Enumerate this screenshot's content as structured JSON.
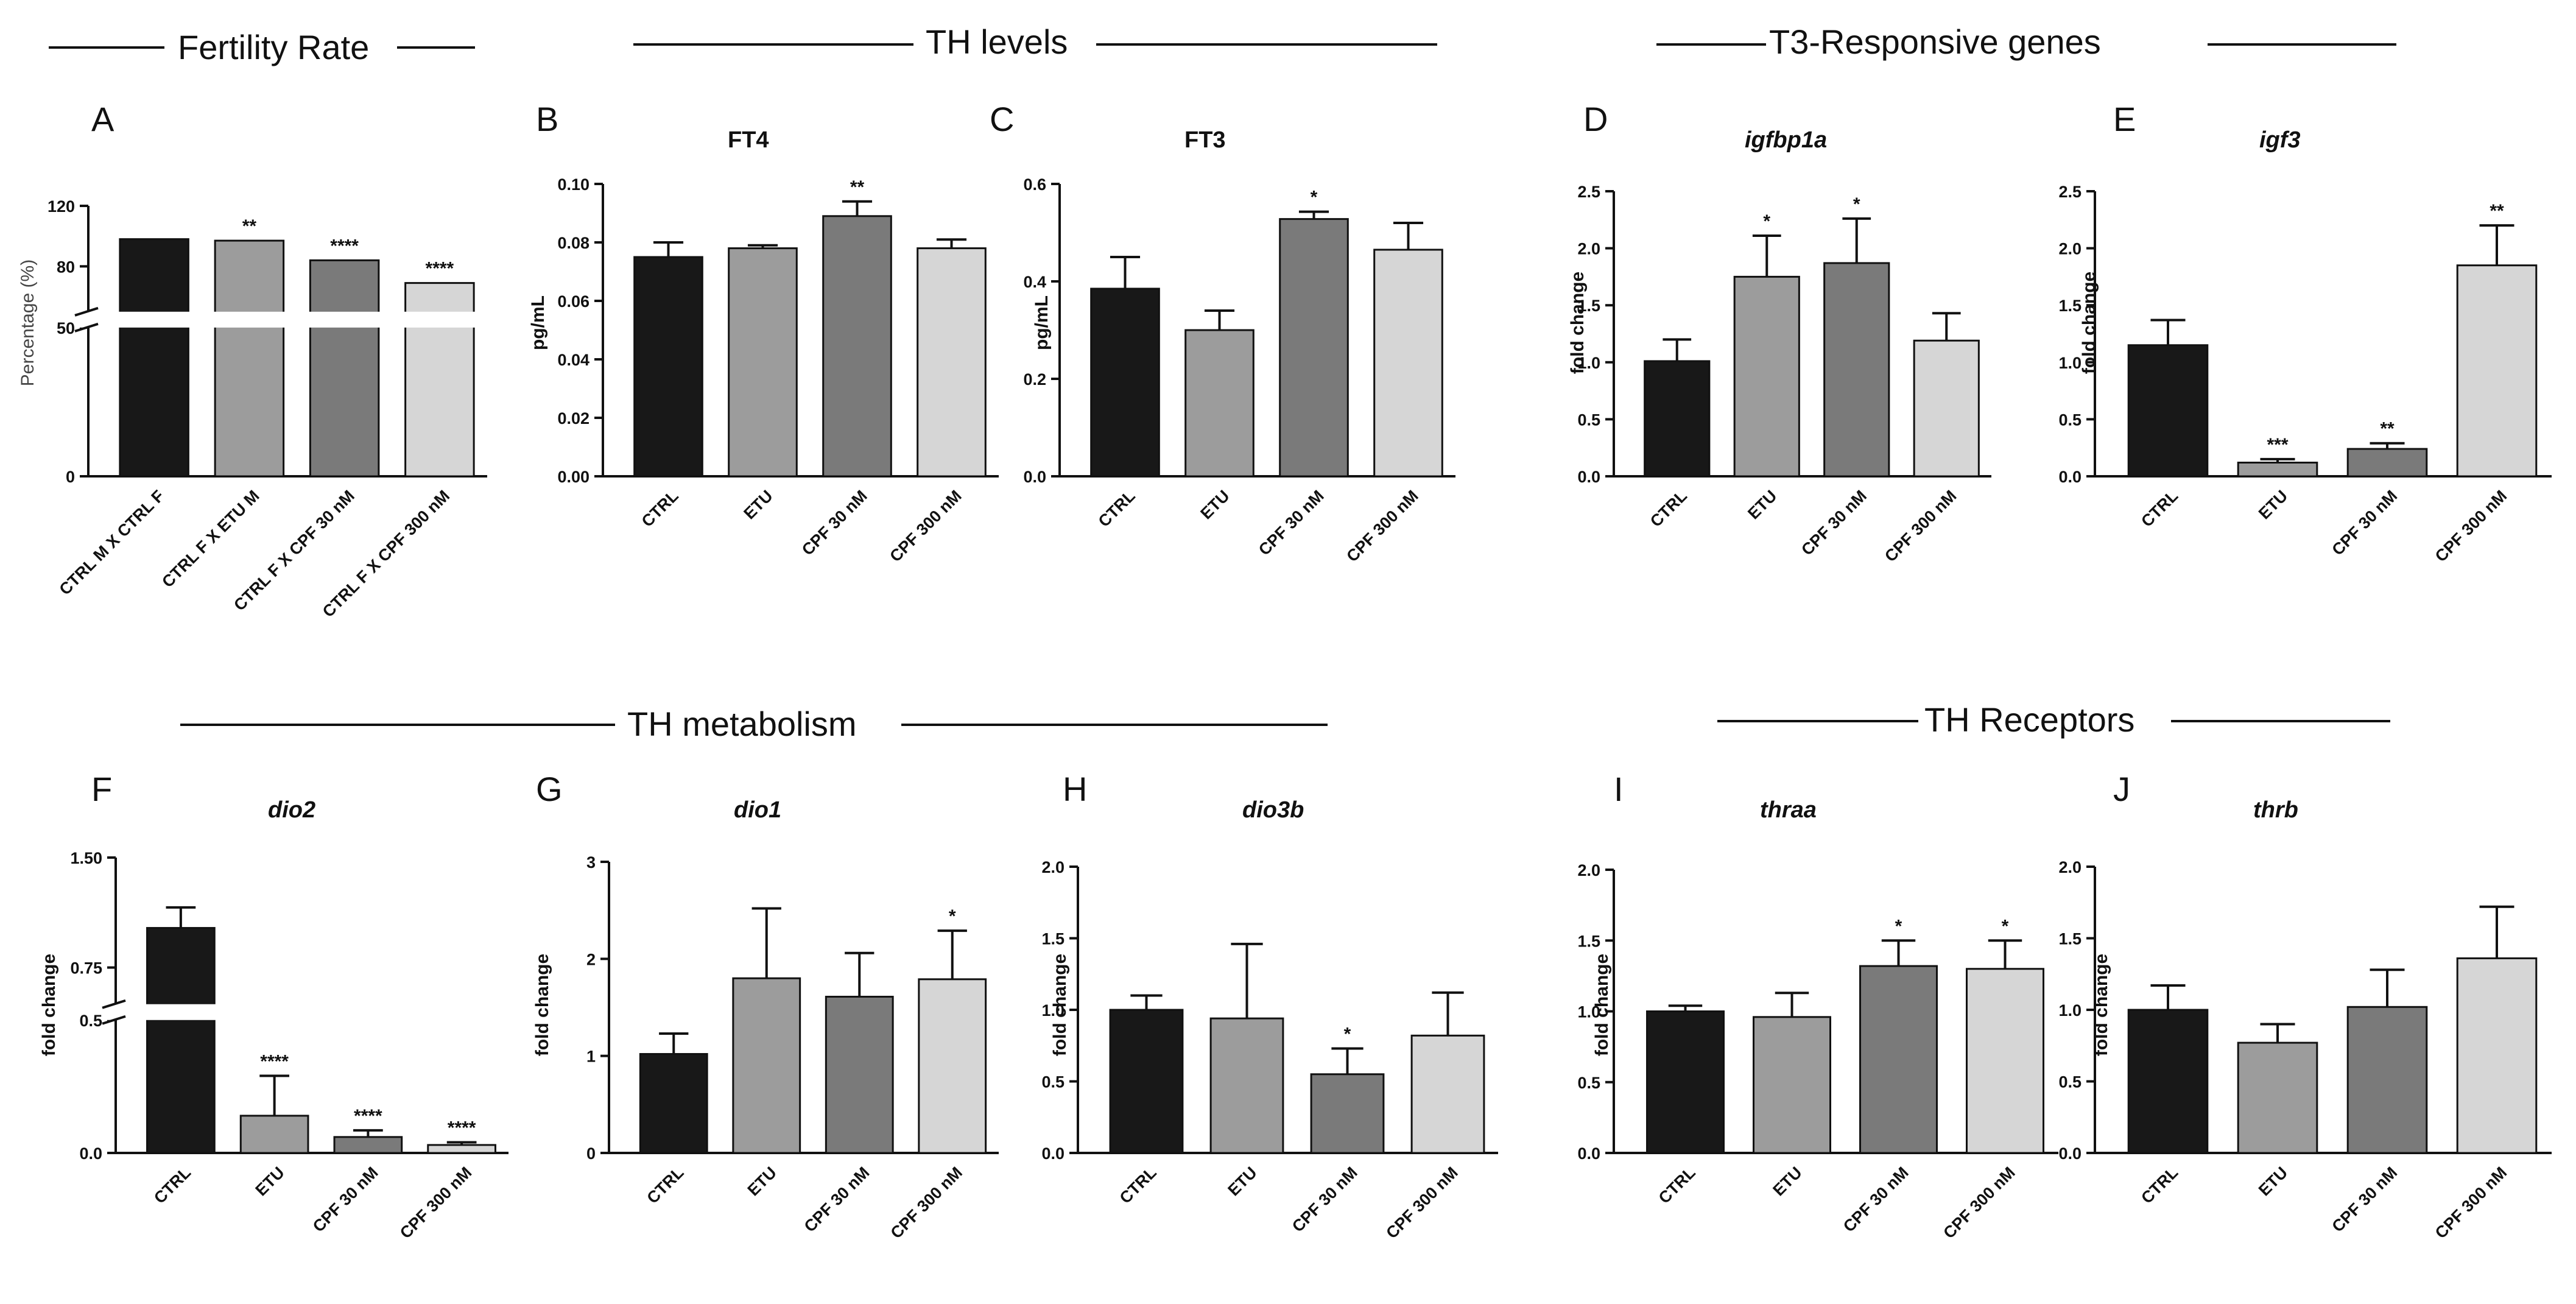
{
  "sections": [
    {
      "id": "fertility",
      "title": "Fertility Rate"
    },
    {
      "id": "th-levels",
      "title": "TH levels"
    },
    {
      "id": "t3-genes",
      "title": "T3-Responsive genes"
    },
    {
      "id": "th-metabolism",
      "title": "TH metabolism"
    },
    {
      "id": "th-receptors",
      "title": "TH Receptors"
    }
  ],
  "colors": [
    "#181818",
    "#9c9c9c",
    "#7a7a7a",
    "#d6d6d6"
  ],
  "chart_data": [
    {
      "letter": "A",
      "title": "",
      "type": "bar",
      "ylabel": "Percentage (%)",
      "categories": [
        "CTRL M X CTRL F",
        "CTRL F X ETU M",
        "CTRL F X CPF 30 nM",
        "CTRL F X CPF 300 nM"
      ],
      "values": [
        98,
        97,
        84,
        69
      ],
      "errors": [
        0,
        0,
        0,
        0
      ],
      "sig": [
        "",
        "**",
        "****",
        "****"
      ],
      "ticks": [
        {
          "v": 0,
          "label": "0"
        },
        {
          "v": 50,
          "label": "50"
        },
        {
          "v": 80,
          "label": "80"
        },
        {
          "v": 120,
          "label": "120"
        }
      ],
      "ylim": [
        0,
        120
      ],
      "axis_break": {
        "lower": [
          0,
          50
        ],
        "upper": [
          50,
          120
        ]
      }
    },
    {
      "letter": "B",
      "title": "FT4",
      "type": "bar",
      "ylabel": "pg/mL",
      "categories": [
        "CTRL",
        "ETU",
        "CPF 30 nM",
        "CPF 300 nM"
      ],
      "values": [
        0.075,
        0.078,
        0.089,
        0.078
      ],
      "errors": [
        0.005,
        0.001,
        0.005,
        0.003
      ],
      "sig": [
        "",
        "",
        "**",
        ""
      ],
      "ticks": [
        {
          "v": 0,
          "label": "0.00"
        },
        {
          "v": 0.02,
          "label": "0.02"
        },
        {
          "v": 0.04,
          "label": "0.04"
        },
        {
          "v": 0.06,
          "label": "0.06"
        },
        {
          "v": 0.08,
          "label": "0.08"
        },
        {
          "v": 0.1,
          "label": "0.10"
        }
      ],
      "ylim": [
        0,
        0.1
      ]
    },
    {
      "letter": "C",
      "title": "FT3",
      "type": "bar",
      "ylabel": "pg/mL",
      "categories": [
        "CTRL",
        "ETU",
        "CPF 30 nM",
        "CPF 300 nM"
      ],
      "values": [
        0.385,
        0.3,
        0.528,
        0.465
      ],
      "errors": [
        0.065,
        0.04,
        0.015,
        0.055
      ],
      "sig": [
        "",
        "",
        "*",
        ""
      ],
      "ticks": [
        {
          "v": 0,
          "label": "0.0"
        },
        {
          "v": 0.2,
          "label": "0.2"
        },
        {
          "v": 0.4,
          "label": "0.4"
        },
        {
          "v": 0.6,
          "label": "0.6"
        }
      ],
      "ylim": [
        0,
        0.6
      ]
    },
    {
      "letter": "D",
      "title": "igfbp1a",
      "italic": true,
      "type": "bar",
      "ylabel": "fold change",
      "categories": [
        "CTRL",
        "ETU",
        "CPF 30 nM",
        "CPF 300 nM"
      ],
      "values": [
        1.01,
        1.75,
        1.87,
        1.19
      ],
      "errors": [
        0.19,
        0.36,
        0.39,
        0.24
      ],
      "sig": [
        "",
        "*",
        "*",
        ""
      ],
      "ticks": [
        {
          "v": 0,
          "label": "0.0"
        },
        {
          "v": 0.5,
          "label": "0.5"
        },
        {
          "v": 1.0,
          "label": "1.0"
        },
        {
          "v": 1.5,
          "label": "1.5"
        },
        {
          "v": 2.0,
          "label": "2.0"
        },
        {
          "v": 2.5,
          "label": "2.5"
        }
      ],
      "ylim": [
        0,
        2.5
      ]
    },
    {
      "letter": "E",
      "title": "igf3",
      "italic": true,
      "type": "bar",
      "ylabel": "fold change",
      "categories": [
        "CTRL",
        "ETU",
        "CPF 30 nM",
        "CPF 300 nM"
      ],
      "values": [
        1.15,
        0.12,
        0.24,
        1.85
      ],
      "errors": [
        0.22,
        0.03,
        0.05,
        0.35
      ],
      "sig": [
        "",
        "***",
        "**",
        "**"
      ],
      "ticks": [
        {
          "v": 0,
          "label": "0.0"
        },
        {
          "v": 0.5,
          "label": "0.5"
        },
        {
          "v": 1.0,
          "label": "1.0"
        },
        {
          "v": 1.5,
          "label": "1.5"
        },
        {
          "v": 2.0,
          "label": "2.0"
        },
        {
          "v": 2.5,
          "label": "2.5"
        }
      ],
      "ylim": [
        0,
        2.5
      ]
    },
    {
      "letter": "F",
      "title": "dio2",
      "italic": true,
      "type": "bar",
      "ylabel": "fold change",
      "categories": [
        "CTRL",
        "ETU",
        "CPF 30 nM",
        "CPF 300 nM"
      ],
      "values": [
        1.02,
        0.14,
        0.06,
        0.03
      ],
      "errors": [
        0.14,
        0.15,
        0.025,
        0.01
      ],
      "sig": [
        "",
        "****",
        "****",
        "****"
      ],
      "ticks": [
        {
          "v": 0,
          "label": "0.0"
        },
        {
          "v": 0.5,
          "label": "0.5"
        },
        {
          "v": 0.75,
          "label": "0.75"
        },
        {
          "v": 1.5,
          "label": "1.50"
        }
      ],
      "ylim": [
        0,
        1.5
      ],
      "axis_break": {
        "lower": [
          0,
          0.5
        ],
        "upper": [
          0.5,
          1.5
        ]
      }
    },
    {
      "letter": "G",
      "title": "dio1",
      "italic": true,
      "type": "bar",
      "ylabel": "fold change",
      "categories": [
        "CTRL",
        "ETU",
        "CPF 30 nM",
        "CPF 300 nM"
      ],
      "values": [
        1.02,
        1.8,
        1.61,
        1.79
      ],
      "errors": [
        0.21,
        0.72,
        0.45,
        0.5
      ],
      "sig": [
        "",
        "",
        "",
        "*"
      ],
      "ticks": [
        {
          "v": 0,
          "label": "0"
        },
        {
          "v": 1,
          "label": "1"
        },
        {
          "v": 2,
          "label": "2"
        },
        {
          "v": 3,
          "label": "3"
        }
      ],
      "ylim": [
        0,
        3
      ]
    },
    {
      "letter": "H",
      "title": "dio3b",
      "italic": true,
      "type": "bar",
      "ylabel": "fold change",
      "categories": [
        "CTRL",
        "ETU",
        "CPF 30 nM",
        "CPF 300 nM"
      ],
      "values": [
        1.0,
        0.94,
        0.55,
        0.82
      ],
      "errors": [
        0.1,
        0.52,
        0.18,
        0.3
      ],
      "sig": [
        "",
        "",
        "*",
        ""
      ],
      "ticks": [
        {
          "v": 0,
          "label": "0.0"
        },
        {
          "v": 0.5,
          "label": "0.5"
        },
        {
          "v": 1.0,
          "label": "1.0"
        },
        {
          "v": 1.5,
          "label": "1.5"
        },
        {
          "v": 2.0,
          "label": "2.0"
        }
      ],
      "ylim": [
        0,
        2.0
      ]
    },
    {
      "letter": "I",
      "title": "thraa",
      "italic": true,
      "type": "bar",
      "ylabel": "fold change",
      "categories": [
        "CTRL",
        "ETU",
        "CPF 30 nM",
        "CPF 300 nM"
      ],
      "values": [
        1.0,
        0.96,
        1.32,
        1.3
      ],
      "errors": [
        0.04,
        0.17,
        0.18,
        0.2
      ],
      "sig": [
        "",
        "",
        "*",
        "*"
      ],
      "ticks": [
        {
          "v": 0,
          "label": "0.0"
        },
        {
          "v": 0.5,
          "label": "0.5"
        },
        {
          "v": 1.0,
          "label": "1.0"
        },
        {
          "v": 1.5,
          "label": "1.5"
        },
        {
          "v": 2.0,
          "label": "2.0"
        }
      ],
      "ylim": [
        0,
        2.0
      ]
    },
    {
      "letter": "J",
      "title": "thrb",
      "italic": true,
      "type": "bar",
      "ylabel": "fold change",
      "categories": [
        "CTRL",
        "ETU",
        "CPF 30 nM",
        "CPF 300 nM"
      ],
      "values": [
        1.0,
        0.77,
        1.02,
        1.36
      ],
      "errors": [
        0.17,
        0.13,
        0.26,
        0.36
      ],
      "sig": [
        "",
        "",
        "",
        ""
      ],
      "ticks": [
        {
          "v": 0,
          "label": "0.0"
        },
        {
          "v": 0.5,
          "label": "0.5"
        },
        {
          "v": 1.0,
          "label": "1.0"
        },
        {
          "v": 1.5,
          "label": "1.5"
        },
        {
          "v": 2.0,
          "label": "2.0"
        }
      ],
      "ylim": [
        0,
        2.0
      ]
    }
  ]
}
